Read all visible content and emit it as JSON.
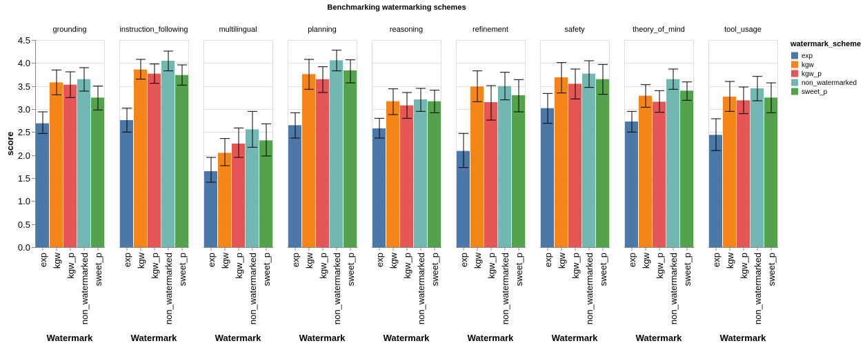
{
  "chart_data": {
    "type": "bar",
    "title": "Benchmarking watermarking schemes",
    "ylabel": "score",
    "xlabel": "Watermark",
    "ylim": [
      0,
      4.5
    ],
    "yticks": [
      "0.0",
      "0.5",
      "1.0",
      "1.5",
      "2.0",
      "2.5",
      "3.0",
      "3.5",
      "4.0",
      "4.5"
    ],
    "grid": true,
    "legend_position": "right",
    "legend_title": "watermark_scheme",
    "categories": [
      "exp",
      "kgw",
      "kgw_p",
      "non_watermarked",
      "sweet_p"
    ],
    "colors": {
      "exp": "#4c78a8",
      "kgw": "#f58518",
      "kgw_p": "#e45756",
      "non_watermarked": "#72b7b2",
      "sweet_p": "#54a24b"
    },
    "facets": [
      {
        "name": "grounding",
        "values": [
          2.69,
          3.58,
          3.53,
          3.65,
          3.25
        ],
        "err_low": [
          2.47,
          3.31,
          3.25,
          3.39,
          2.98
        ],
        "err_high": [
          2.94,
          3.85,
          3.81,
          3.9,
          3.5
        ]
      },
      {
        "name": "instruction_following",
        "values": [
          2.76,
          3.86,
          3.77,
          4.05,
          3.74
        ],
        "err_low": [
          2.5,
          3.65,
          3.56,
          3.83,
          3.52
        ],
        "err_high": [
          3.02,
          4.08,
          3.98,
          4.26,
          3.96
        ]
      },
      {
        "name": "multilingual",
        "values": [
          1.65,
          2.05,
          2.25,
          2.56,
          2.32
        ],
        "err_low": [
          1.41,
          1.77,
          1.95,
          2.17,
          1.98
        ],
        "err_high": [
          1.95,
          2.36,
          2.59,
          2.95,
          2.68
        ]
      },
      {
        "name": "planning",
        "values": [
          2.65,
          3.76,
          3.65,
          4.06,
          3.84
        ],
        "err_low": [
          2.37,
          3.43,
          3.36,
          3.83,
          3.57
        ],
        "err_high": [
          2.92,
          4.08,
          3.92,
          4.28,
          4.07
        ]
      },
      {
        "name": "reasoning",
        "values": [
          2.58,
          3.17,
          3.08,
          3.21,
          3.17
        ],
        "err_low": [
          2.37,
          2.88,
          2.8,
          2.95,
          2.92
        ],
        "err_high": [
          2.8,
          3.44,
          3.36,
          3.45,
          3.41
        ]
      },
      {
        "name": "refinement",
        "values": [
          2.09,
          3.49,
          3.15,
          3.5,
          3.3
        ],
        "err_low": [
          1.73,
          3.16,
          2.76,
          3.2,
          2.94
        ],
        "err_high": [
          2.47,
          3.83,
          3.51,
          3.8,
          3.64
        ]
      },
      {
        "name": "safety",
        "values": [
          3.02,
          3.69,
          3.55,
          3.77,
          3.65
        ],
        "err_low": [
          2.69,
          3.35,
          3.22,
          3.47,
          3.32
        ],
        "err_high": [
          3.34,
          4.01,
          3.87,
          4.05,
          3.97
        ]
      },
      {
        "name": "theory_of_mind",
        "values": [
          2.73,
          3.29,
          3.16,
          3.65,
          3.4
        ],
        "err_low": [
          2.5,
          3.04,
          2.93,
          3.43,
          3.19
        ],
        "err_high": [
          2.95,
          3.53,
          3.4,
          3.87,
          3.59
        ]
      },
      {
        "name": "tool_usage",
        "values": [
          2.44,
          3.27,
          3.19,
          3.45,
          3.25
        ],
        "err_low": [
          2.1,
          2.95,
          2.9,
          3.18,
          2.92
        ],
        "err_high": [
          2.79,
          3.6,
          3.48,
          3.71,
          3.57
        ]
      }
    ]
  }
}
